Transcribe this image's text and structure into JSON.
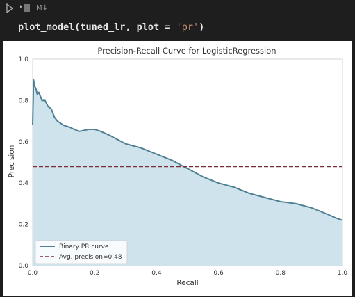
{
  "toolbar": {
    "run_icon": "play-icon",
    "split_icon": "split-cell-icon",
    "cell_type": "M↓"
  },
  "code": {
    "func": "plot_model(tuned_lr, plot = ",
    "arg": "'pr'",
    "close": ")"
  },
  "colors": {
    "background": "#1e1e1e",
    "fill": "#cfe3ed",
    "curve": "#4f7f93",
    "avg_line": "#7b2d36"
  },
  "chart_data": {
    "type": "area",
    "title": "Precision-Recall Curve for LogisticRegression",
    "xlabel": "Recall",
    "ylabel": "Precision",
    "xlim": [
      0.0,
      1.0
    ],
    "ylim": [
      0.0,
      1.0
    ],
    "xticks": [
      "0.0",
      "0.2",
      "0.4",
      "0.6",
      "0.8",
      "1.0"
    ],
    "yticks": [
      "0.0",
      "0.2",
      "0.4",
      "0.6",
      "0.8",
      "1.0"
    ],
    "grid": false,
    "legend_position": "bottom-left",
    "series": [
      {
        "name": "Binary PR curve",
        "x": [
          0.0,
          0.003,
          0.006,
          0.01,
          0.015,
          0.02,
          0.03,
          0.04,
          0.05,
          0.06,
          0.07,
          0.08,
          0.1,
          0.12,
          0.15,
          0.18,
          0.2,
          0.22,
          0.25,
          0.3,
          0.35,
          0.4,
          0.45,
          0.5,
          0.55,
          0.6,
          0.65,
          0.7,
          0.75,
          0.8,
          0.85,
          0.9,
          0.95,
          0.98,
          1.0
        ],
        "y": [
          0.68,
          0.9,
          0.87,
          0.86,
          0.83,
          0.84,
          0.8,
          0.8,
          0.77,
          0.76,
          0.72,
          0.7,
          0.68,
          0.67,
          0.65,
          0.66,
          0.66,
          0.65,
          0.63,
          0.59,
          0.57,
          0.54,
          0.51,
          0.47,
          0.43,
          0.4,
          0.38,
          0.35,
          0.33,
          0.31,
          0.3,
          0.28,
          0.25,
          0.23,
          0.22
        ]
      }
    ],
    "avg_precision": {
      "name": "Avg. precision=0.48",
      "value": 0.48
    }
  }
}
